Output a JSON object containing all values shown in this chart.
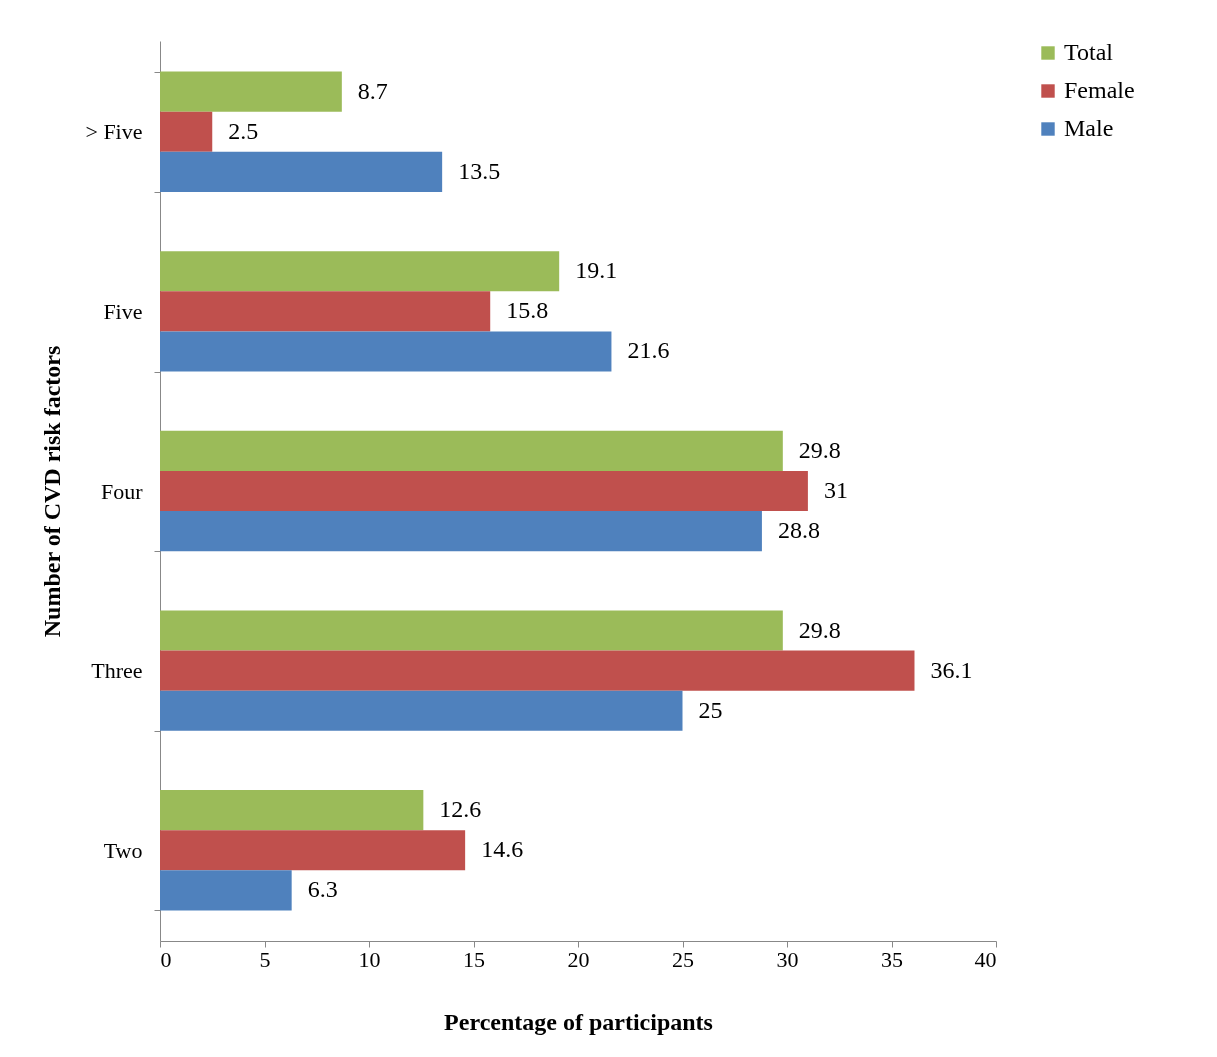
{
  "chart_data": {
    "type": "bar",
    "orientation": "horizontal",
    "xlabel": "Percentage of participants",
    "ylabel": "Number of CVD risk factors",
    "categories": [
      "> Five",
      "Five",
      "Four",
      "Three",
      "Two"
    ],
    "series": [
      {
        "name": "Total",
        "color": "#9bbb59",
        "values": [
          8.7,
          19.1,
          29.8,
          29.8,
          12.6
        ]
      },
      {
        "name": "Female",
        "color": "#c0504d",
        "values": [
          2.5,
          15.8,
          31,
          36.1,
          14.6
        ]
      },
      {
        "name": "Male",
        "color": "#4f81bd",
        "values": [
          13.5,
          21.6,
          28.8,
          25,
          6.3
        ]
      }
    ],
    "xlim": [
      0,
      40
    ],
    "xticks": [
      0,
      5,
      10,
      15,
      20,
      25,
      30,
      35,
      40
    ],
    "grid": false,
    "legend": "right",
    "data_labels": true
  }
}
